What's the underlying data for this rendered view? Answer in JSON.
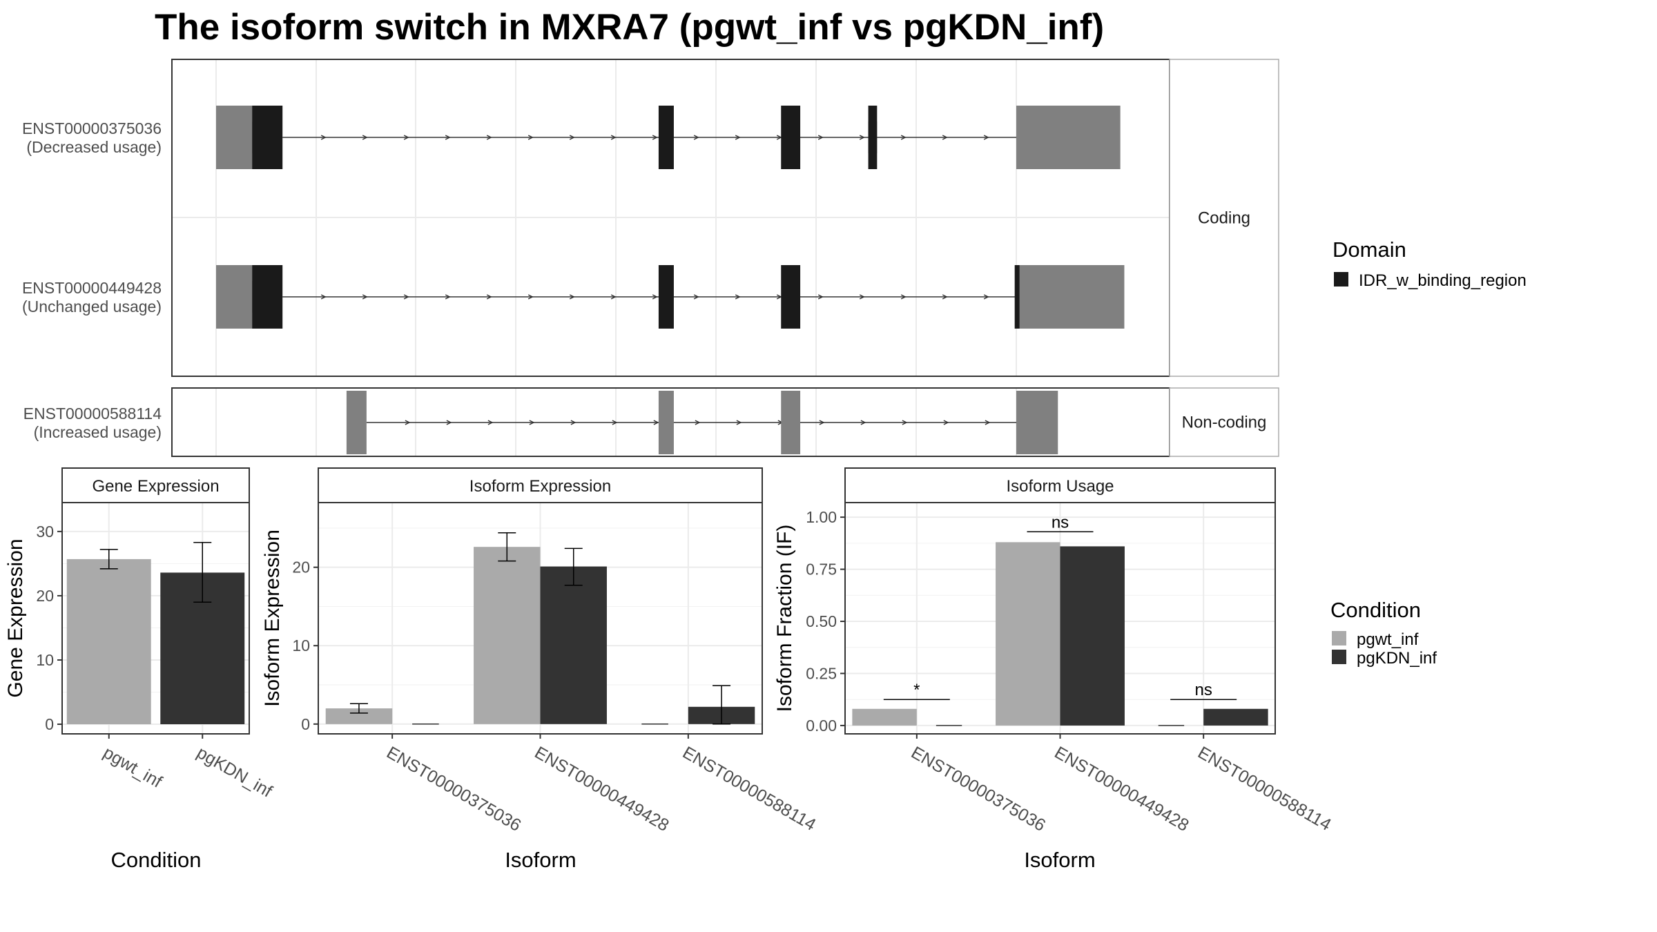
{
  "title": "The isoform switch in MXRA7 (pgwt_inf vs pgKDN_inf)",
  "colors": {
    "exon": "#808080",
    "domain": "#1a1a1a",
    "noncoding_exon": "#808080",
    "cond1": "#aaaaaa",
    "cond2": "#333333",
    "grid": "#ebebeb",
    "frame": "#333333",
    "strip_bg": "#ffffff",
    "axis_text": "#4d4d4d"
  },
  "structure": {
    "groups": [
      {
        "label": "Coding",
        "transcripts": [
          {
            "id": "ENST00000375036",
            "usage": "(Decreased usage)",
            "tall": [
              [
                0.0,
                0.045
              ],
              [
                1.0,
                1.13
              ]
            ],
            "short": [
              [
                0.02,
                0.045
              ],
              [
                0.815,
                0.826
              ]
            ],
            "domain": [
              [
                0.045,
                0.083
              ],
              [
                0.553,
                0.572
              ],
              [
                0.706,
                0.73
              ],
              [
                0.815,
                0.826
              ]
            ],
            "intron": [
              0.083,
              1.0
            ]
          },
          {
            "id": "ENST00000449428",
            "usage": "(Unchanged usage)",
            "tall": [
              [
                0.0,
                0.045
              ],
              [
                1.0,
                1.135
              ]
            ],
            "short": [
              [
                0.02,
                0.045
              ]
            ],
            "domain": [
              [
                0.045,
                0.083
              ],
              [
                0.553,
                0.572
              ],
              [
                0.706,
                0.73
              ],
              [
                0.998,
                1.004
              ]
            ],
            "intron": [
              0.083,
              1.0
            ]
          }
        ]
      },
      {
        "label": "Non-coding",
        "transcripts": [
          {
            "id": "ENST00000588114",
            "usage": "(Increased usage)",
            "noncoding": [
              [
                0.163,
                0.188
              ],
              [
                0.553,
                0.572
              ],
              [
                0.706,
                0.73
              ],
              [
                1.0,
                1.052
              ]
            ],
            "intron": [
              0.188,
              1.0
            ]
          }
        ]
      }
    ],
    "legend": {
      "title": "Domain",
      "entries": [
        {
          "label": "IDR_w_binding_region",
          "color": "#1a1a1a"
        }
      ]
    }
  },
  "chart_data": [
    {
      "type": "bar",
      "title": "Gene Expression",
      "xlabel": "Condition",
      "ylabel": "Gene Expression",
      "categories": [
        "pgwt_inf",
        "pgKDN_inf"
      ],
      "values": [
        25.7,
        23.6
      ],
      "error_low": [
        24.2,
        19.0
      ],
      "error_high": [
        27.2,
        28.3
      ],
      "ylim": [
        -1.5,
        34.5
      ],
      "yticks": [
        0,
        10,
        20,
        30
      ],
      "ytick_labels": [
        "0",
        "10",
        "20",
        "30"
      ]
    },
    {
      "type": "bar",
      "title": "Isoform Expression",
      "xlabel": "Isoform",
      "ylabel": "Isoform Expression",
      "categories": [
        "ENST00000375036",
        "ENST00000449428",
        "ENST00000588114"
      ],
      "series": [
        {
          "name": "pgwt_inf",
          "values": [
            2.0,
            22.6,
            0.0
          ],
          "error_low": [
            1.4,
            20.8,
            0.0
          ],
          "error_high": [
            2.6,
            24.4,
            0.0
          ]
        },
        {
          "name": "pgKDN_inf",
          "values": [
            0.0,
            20.1,
            2.2
          ],
          "error_low": [
            0.0,
            17.7,
            0.0
          ],
          "error_high": [
            0.0,
            22.4,
            4.9
          ]
        }
      ],
      "ylim": [
        -1.25,
        28.25
      ],
      "yticks": [
        0,
        10,
        20
      ],
      "ytick_labels": [
        "0",
        "10",
        "20"
      ]
    },
    {
      "type": "bar",
      "title": "Isoform Usage",
      "xlabel": "Isoform",
      "ylabel": "Isoform Fraction (IF)",
      "categories": [
        "ENST00000375036",
        "ENST00000449428",
        "ENST00000588114"
      ],
      "series": [
        {
          "name": "pgwt_inf",
          "values": [
            0.08,
            0.88,
            0.0
          ]
        },
        {
          "name": "pgKDN_inf",
          "values": [
            0.0,
            0.86,
            0.08
          ]
        }
      ],
      "significance": [
        {
          "label": "*",
          "y": 0.125
        },
        {
          "label": "ns",
          "y": 0.93
        },
        {
          "label": "ns",
          "y": 0.125
        }
      ],
      "ylim": [
        -0.04,
        1.07
      ],
      "yticks": [
        0,
        0.25,
        0.5,
        0.75,
        1.0
      ],
      "ytick_labels": [
        "0.00",
        "0.25",
        "0.50",
        "0.75",
        "1.00"
      ]
    }
  ],
  "condition_legend": {
    "title": "Condition",
    "entries": [
      {
        "label": "pgwt_inf",
        "color": "#aaaaaa"
      },
      {
        "label": "pgKDN_inf",
        "color": "#333333"
      }
    ]
  }
}
